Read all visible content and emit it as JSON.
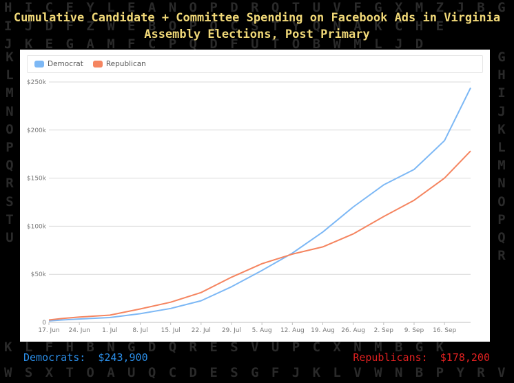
{
  "title": "Cumulative Candidate + Committee Spending on Facebook Ads in Virginia Assembly Elections, Post Primary",
  "colors": {
    "democrat": "#7db8f5",
    "republican": "#f58560",
    "background": "#000000",
    "title": "#f0d878"
  },
  "totals": {
    "democrats_label": "Democrats:",
    "democrats_value": "$243,900",
    "republicans_label": "Republicans:",
    "republicans_value": "$178,200"
  },
  "chart_data": {
    "type": "line",
    "title": "Cumulative Candidate + Committee Spending on Facebook Ads in Virginia Assembly Elections, Post Primary",
    "xlabel": "",
    "ylabel": "",
    "x": [
      "17. Jun",
      "20. Jun",
      "24. Jun",
      "1. Jul",
      "8. Jul",
      "15. Jul",
      "22. Jul",
      "29. Jul",
      "5. Aug",
      "12. Aug",
      "19. Aug",
      "26. Aug",
      "2. Sep",
      "9. Sep",
      "16. Sep",
      "22. Sep"
    ],
    "x_tick_labels": [
      "17. Jun",
      "24. Jun",
      "1. Jul",
      "8. Jul",
      "15. Jul",
      "22. Jul",
      "29. Jul",
      "5. Aug",
      "12. Aug",
      "19. Aug",
      "26. Aug",
      "2. Sep",
      "9. Sep",
      "16. Sep"
    ],
    "x_day_offsets": [
      0,
      3,
      7,
      14,
      21,
      28,
      35,
      42,
      49,
      56,
      63,
      70,
      77,
      84,
      91,
      97
    ],
    "series": [
      {
        "name": "Democrat",
        "color": "#7db8f5",
        "values": [
          1500,
          2500,
          3500,
          5000,
          9000,
          14500,
          22500,
          37000,
          54000,
          72000,
          94000,
          120000,
          143000,
          159000,
          189000,
          243900
        ]
      },
      {
        "name": "Republican",
        "color": "#f58560",
        "values": [
          2500,
          4000,
          5500,
          7500,
          14000,
          21000,
          31000,
          47000,
          61000,
          71000,
          78500,
          92000,
          110000,
          127000,
          150000,
          178200
        ]
      }
    ],
    "yticks": [
      0,
      50000,
      100000,
      150000,
      200000,
      250000
    ],
    "ytick_labels": [
      "0",
      "$50k",
      "$100k",
      "$150k",
      "$200k",
      "$250k"
    ],
    "ylim": [
      0,
      250000
    ],
    "xlim_days": [
      0,
      97
    ],
    "grid": true,
    "legend_position": "top-left"
  },
  "background_letters": {
    "rows": [
      "HICEYLEANOPDRQTUVFGXMZJBGD",
      "IJDFZWEBOPQCSTYQNAKCHE",
      "JKEGAMFCPQDFUTOBWMLJD",
      "KLFHBNGDQRESVUPCXNMBGK",
      "WSXTOAUQCDESGFJKLVWNBPYRVT"
    ],
    "left_column": "KLMNOPQRSTU",
    "right_column": "GHIJKLMNOPQR"
  }
}
